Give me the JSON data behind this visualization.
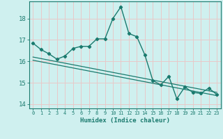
{
  "xlabel": "Humidex (Indice chaleur)",
  "ylabel": "",
  "xlim": [
    -0.5,
    23.5
  ],
  "ylim": [
    13.8,
    18.8
  ],
  "yticks": [
    14,
    15,
    16,
    17,
    18
  ],
  "xticks": [
    0,
    1,
    2,
    3,
    4,
    5,
    6,
    7,
    8,
    9,
    10,
    11,
    12,
    13,
    14,
    15,
    16,
    17,
    18,
    19,
    20,
    21,
    22,
    23
  ],
  "bg_color": "#cff0ef",
  "grid_color": "#e8c8c8",
  "line_color": "#1a7a6e",
  "series1_x": [
    0,
    1,
    2,
    3,
    4,
    5,
    6,
    7,
    8,
    9,
    10,
    11,
    12,
    13,
    14,
    15,
    16,
    17,
    18,
    19,
    20,
    21,
    22,
    23
  ],
  "series1_y": [
    16.85,
    16.55,
    16.35,
    16.1,
    16.25,
    16.6,
    16.7,
    16.7,
    17.05,
    17.05,
    18.0,
    18.55,
    17.3,
    17.15,
    16.3,
    15.1,
    14.9,
    15.3,
    14.25,
    14.8,
    14.55,
    14.5,
    14.75,
    14.45
  ],
  "series2_x": [
    0,
    23
  ],
  "series2_y": [
    16.2,
    14.55
  ],
  "series3_x": [
    0,
    23
  ],
  "series3_y": [
    16.05,
    14.4
  ]
}
